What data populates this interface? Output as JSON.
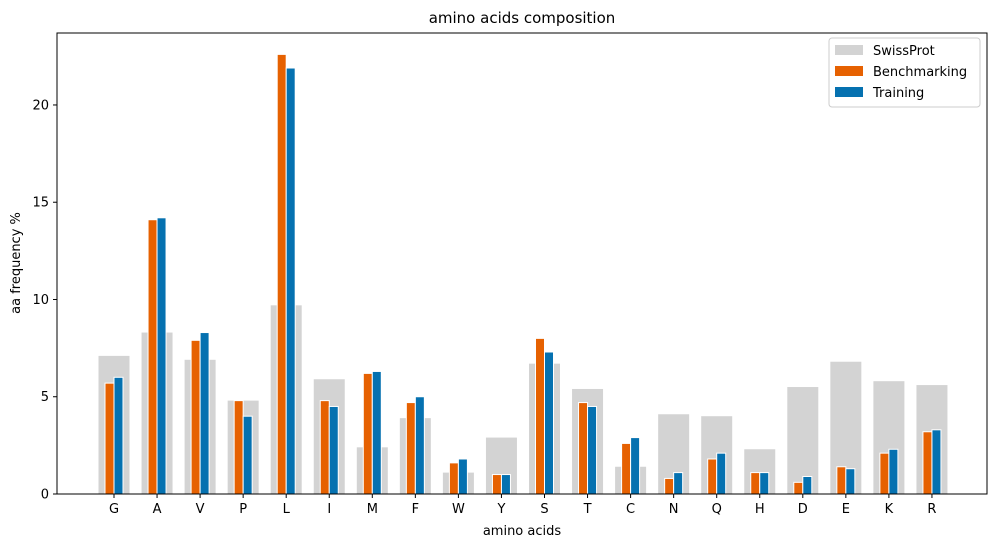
{
  "chart_data": {
    "type": "bar",
    "title": "amino acids composition",
    "xlabel": "amino acids",
    "ylabel": "aa frequency %",
    "ylim": [
      0,
      23.7
    ],
    "yticks": [
      0,
      5,
      10,
      15,
      20
    ],
    "grid": false,
    "legend_position": "top-right",
    "categories": [
      "G",
      "A",
      "V",
      "P",
      "L",
      "I",
      "M",
      "F",
      "W",
      "Y",
      "S",
      "T",
      "C",
      "N",
      "Q",
      "H",
      "D",
      "E",
      "K",
      "R"
    ],
    "series": [
      {
        "name": "SwissProt",
        "color": "#d3d3d3",
        "values": [
          7.1,
          8.3,
          6.9,
          4.8,
          9.7,
          5.9,
          2.4,
          3.9,
          1.1,
          2.9,
          6.7,
          5.4,
          1.4,
          4.1,
          4.0,
          2.3,
          5.5,
          6.8,
          5.8,
          5.6
        ]
      },
      {
        "name": "Benchmarking",
        "color": "#e66101",
        "values": [
          5.7,
          14.1,
          7.9,
          4.8,
          22.6,
          4.8,
          6.2,
          4.7,
          1.6,
          1.0,
          8.0,
          4.7,
          2.6,
          0.8,
          1.8,
          1.1,
          0.6,
          1.4,
          2.1,
          3.2
        ]
      },
      {
        "name": "Training",
        "color": "#0571b0",
        "values": [
          6.0,
          14.2,
          8.3,
          4.0,
          21.9,
          4.5,
          6.3,
          5.0,
          1.8,
          1.0,
          7.3,
          4.5,
          2.9,
          1.1,
          2.1,
          1.1,
          0.9,
          1.3,
          2.3,
          3.3
        ]
      }
    ]
  }
}
